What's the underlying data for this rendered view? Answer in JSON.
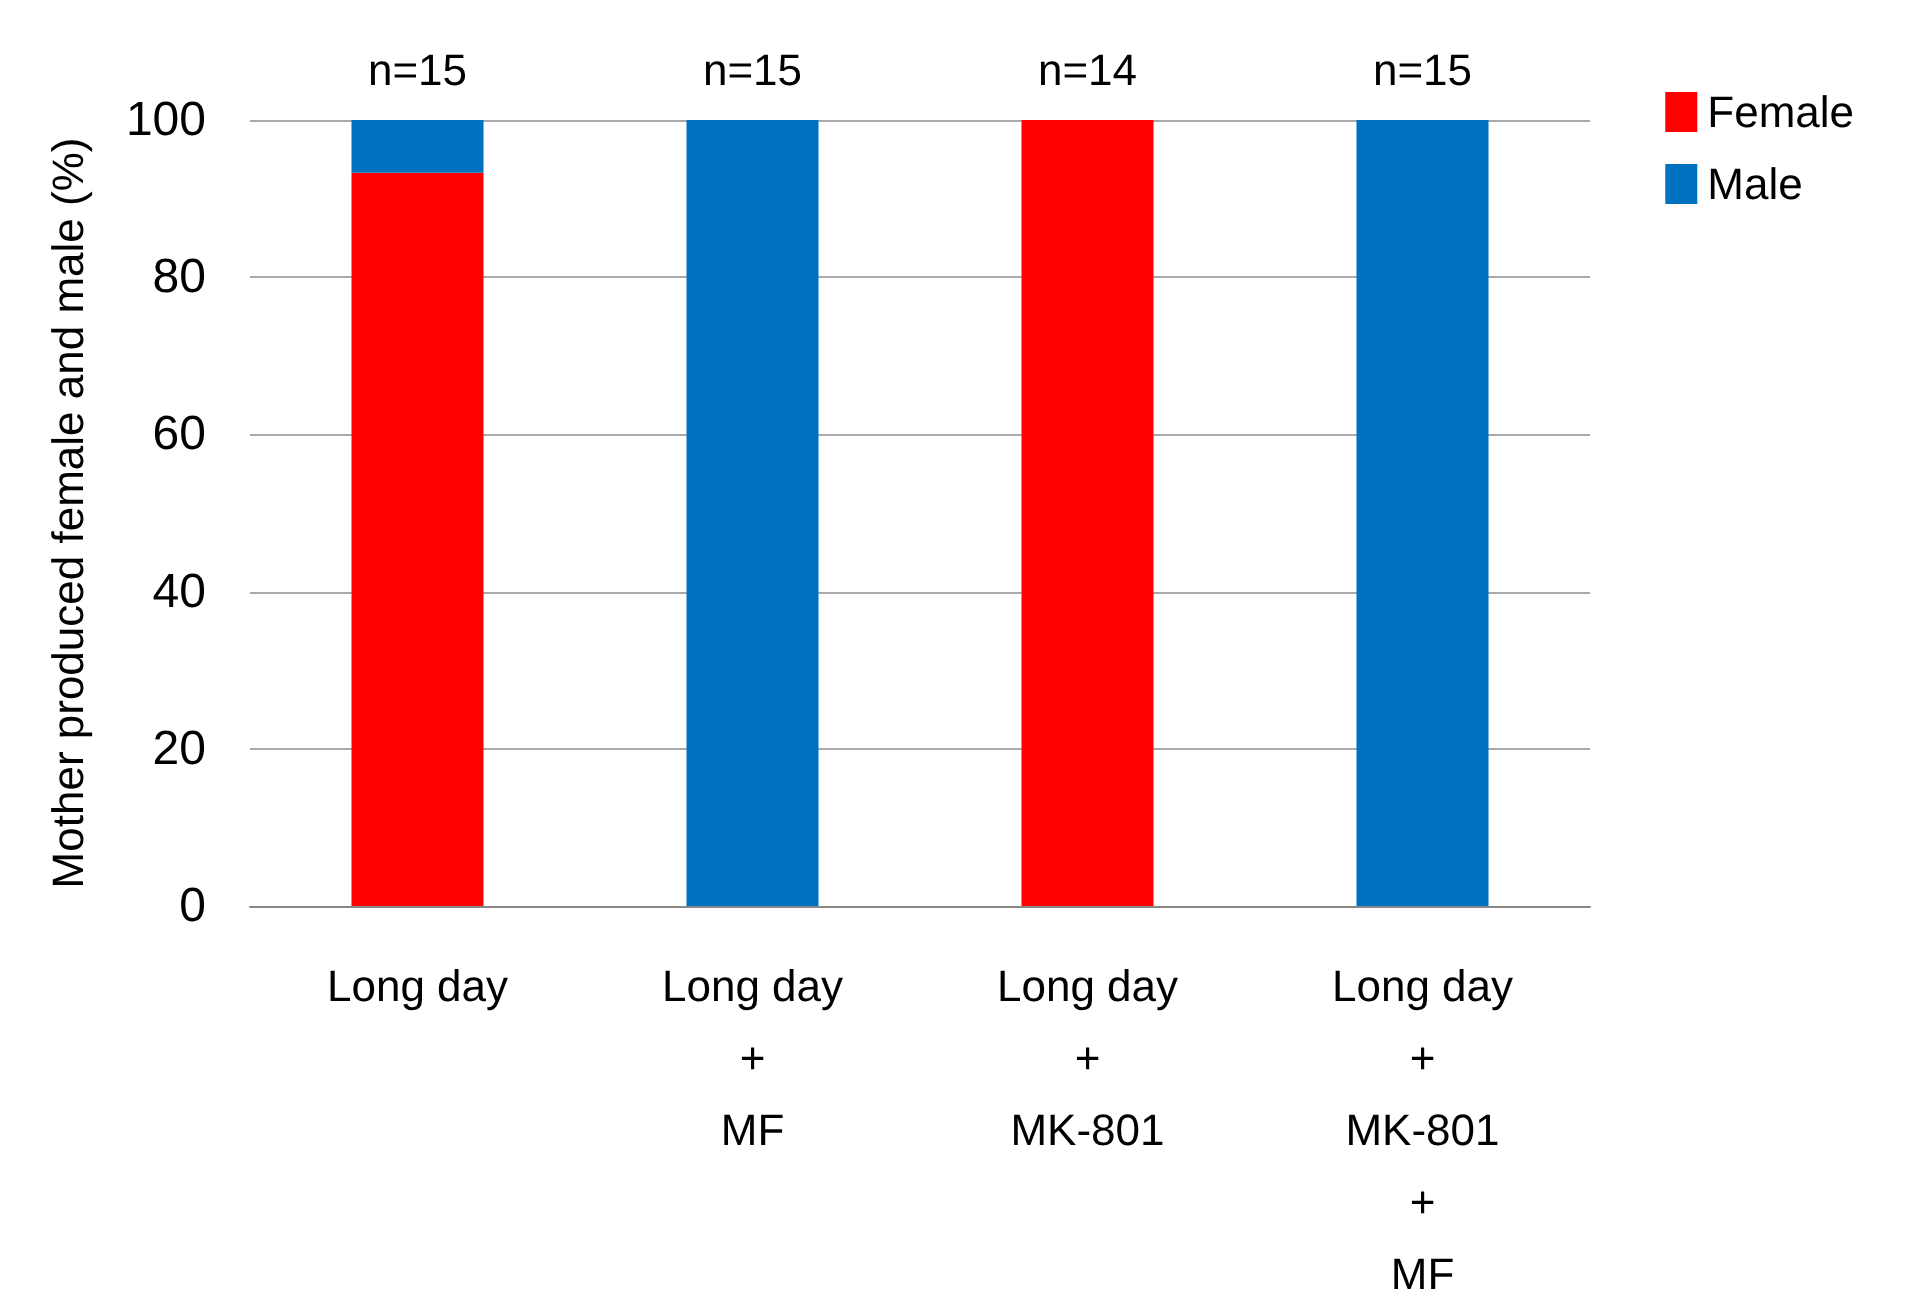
{
  "chart_data": {
    "type": "bar",
    "ylabel": "Mother produced female and male (%)",
    "categories": [
      "Long day",
      "Long day\n+\nMF",
      "Long day\n+\nMK-801",
      "Long day\n+\nMK-801\n+\nMF"
    ],
    "series": [
      {
        "name": "Female",
        "color": "#ff0000",
        "values": [
          93.3,
          0,
          100,
          0
        ]
      },
      {
        "name": "Male",
        "color": "#0070c0",
        "values": [
          6.7,
          100,
          0,
          100
        ]
      }
    ],
    "stacked": true,
    "ylim": [
      0,
      100
    ],
    "yticks": [
      0,
      20,
      40,
      60,
      80,
      100
    ],
    "grid": "y",
    "legend": "top right",
    "annotations": [
      {
        "text": "n=15",
        "x": "Long day",
        "y": 100
      },
      {
        "text": "n=15",
        "x": "Long day\n+\nMF",
        "y": 100
      },
      {
        "text": "n=14",
        "x": "Long day\n+\nMK-801",
        "y": 100
      },
      {
        "text": "n=15",
        "x": "Long day\n+\nMK-801\n+\nMF",
        "y": 100
      }
    ]
  }
}
